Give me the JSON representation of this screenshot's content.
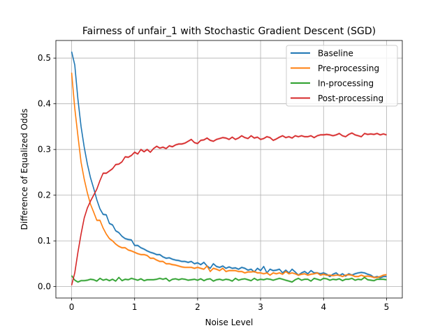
{
  "chart_data": {
    "type": "line",
    "title": "Fairness of unfair_1 with Stochastic Gradient Descent (SGD)",
    "xlabel": "Noise Level",
    "ylabel": "Difference of Equalized Odds",
    "xlim": [
      -0.25,
      5.25
    ],
    "ylim": [
      -0.025,
      0.5385
    ],
    "xticks": [
      0,
      1,
      2,
      3,
      4,
      5
    ],
    "xtick_labels": [
      "0",
      "1",
      "2",
      "3",
      "4",
      "5"
    ],
    "yticks": [
      0.0,
      0.1,
      0.2,
      0.3,
      0.4,
      0.5
    ],
    "ytick_labels": [
      "0.0",
      "0.1",
      "0.2",
      "0.3",
      "0.4",
      "0.5"
    ],
    "grid": true,
    "legend_position": "top-right",
    "x": [
      0,
      0.05,
      0.1,
      0.15,
      0.2,
      0.25,
      0.3,
      0.35,
      0.4,
      0.45,
      0.5,
      0.55,
      0.6,
      0.65,
      0.7,
      0.75,
      0.8,
      0.85,
      0.9,
      0.95,
      1.0,
      1.05,
      1.1,
      1.15,
      1.2,
      1.25,
      1.3,
      1.35,
      1.4,
      1.45,
      1.5,
      1.55,
      1.6,
      1.65,
      1.7,
      1.75,
      1.8,
      1.85,
      1.9,
      1.95,
      2.0,
      2.05,
      2.1,
      2.15,
      2.2,
      2.25,
      2.3,
      2.35,
      2.4,
      2.45,
      2.5,
      2.55,
      2.6,
      2.65,
      2.7,
      2.75,
      2.8,
      2.85,
      2.9,
      2.95,
      3.0,
      3.05,
      3.1,
      3.15,
      3.2,
      3.25,
      3.3,
      3.35,
      3.4,
      3.45,
      3.5,
      3.55,
      3.6,
      3.65,
      3.7,
      3.75,
      3.8,
      3.85,
      3.9,
      3.95,
      4.0,
      4.05,
      4.1,
      4.15,
      4.2,
      4.25,
      4.3,
      4.35,
      4.4,
      4.45,
      4.5,
      4.55,
      4.6,
      4.65,
      4.7,
      4.75,
      4.8,
      4.85,
      4.9,
      4.95,
      5.0
    ],
    "series": [
      {
        "name": "Baseline",
        "color": "#1f77b4",
        "values": [
          0.514,
          0.485,
          0.41,
          0.35,
          0.305,
          0.268,
          0.238,
          0.215,
          0.19,
          0.17,
          0.158,
          0.157,
          0.138,
          0.135,
          0.122,
          0.118,
          0.11,
          0.105,
          0.103,
          0.102,
          0.09,
          0.09,
          0.085,
          0.082,
          0.078,
          0.075,
          0.073,
          0.07,
          0.07,
          0.065,
          0.062,
          0.063,
          0.06,
          0.058,
          0.057,
          0.055,
          0.055,
          0.053,
          0.055,
          0.05,
          0.052,
          0.048,
          0.053,
          0.045,
          0.04,
          0.05,
          0.044,
          0.042,
          0.045,
          0.04,
          0.043,
          0.04,
          0.041,
          0.038,
          0.042,
          0.04,
          0.036,
          0.038,
          0.032,
          0.04,
          0.035,
          0.044,
          0.03,
          0.038,
          0.035,
          0.036,
          0.038,
          0.03,
          0.036,
          0.03,
          0.038,
          0.032,
          0.025,
          0.03,
          0.033,
          0.028,
          0.035,
          0.03,
          0.03,
          0.028,
          0.03,
          0.027,
          0.022,
          0.027,
          0.03,
          0.024,
          0.028,
          0.023,
          0.028,
          0.025,
          0.028,
          0.03,
          0.031,
          0.03,
          0.027,
          0.025,
          0.02,
          0.022,
          0.019,
          0.022,
          0.022
        ]
      },
      {
        "name": "Pre-processing",
        "color": "#ff7f0e",
        "values": [
          0.468,
          0.39,
          0.33,
          0.272,
          0.235,
          0.205,
          0.18,
          0.163,
          0.145,
          0.145,
          0.128,
          0.115,
          0.105,
          0.1,
          0.093,
          0.088,
          0.085,
          0.085,
          0.08,
          0.078,
          0.075,
          0.072,
          0.07,
          0.07,
          0.068,
          0.062,
          0.062,
          0.058,
          0.055,
          0.055,
          0.05,
          0.05,
          0.048,
          0.047,
          0.045,
          0.043,
          0.042,
          0.042,
          0.042,
          0.04,
          0.042,
          0.04,
          0.038,
          0.045,
          0.033,
          0.04,
          0.038,
          0.035,
          0.04,
          0.033,
          0.035,
          0.035,
          0.035,
          0.033,
          0.033,
          0.03,
          0.032,
          0.032,
          0.033,
          0.03,
          0.03,
          0.028,
          0.03,
          0.025,
          0.03,
          0.028,
          0.03,
          0.027,
          0.033,
          0.028,
          0.03,
          0.028,
          0.025,
          0.027,
          0.028,
          0.025,
          0.027,
          0.028,
          0.03,
          0.025,
          0.027,
          0.025,
          0.025,
          0.024,
          0.025,
          0.025,
          0.022,
          0.025,
          0.026,
          0.025,
          0.022,
          0.022,
          0.025,
          0.022,
          0.023,
          0.022,
          0.02,
          0.02,
          0.022,
          0.025,
          0.026
        ]
      },
      {
        "name": "In-processing",
        "color": "#2ca02c",
        "values": [
          0.024,
          0.014,
          0.01,
          0.013,
          0.013,
          0.014,
          0.016,
          0.015,
          0.012,
          0.018,
          0.014,
          0.016,
          0.013,
          0.016,
          0.012,
          0.02,
          0.013,
          0.016,
          0.015,
          0.018,
          0.016,
          0.014,
          0.017,
          0.013,
          0.015,
          0.015,
          0.015,
          0.016,
          0.018,
          0.016,
          0.018,
          0.012,
          0.016,
          0.017,
          0.015,
          0.017,
          0.016,
          0.014,
          0.015,
          0.016,
          0.014,
          0.017,
          0.013,
          0.016,
          0.017,
          0.012,
          0.015,
          0.016,
          0.014,
          0.016,
          0.015,
          0.012,
          0.018,
          0.014,
          0.016,
          0.017,
          0.015,
          0.013,
          0.018,
          0.014,
          0.016,
          0.015,
          0.017,
          0.016,
          0.014,
          0.016,
          0.018,
          0.016,
          0.014,
          0.012,
          0.01,
          0.015,
          0.018,
          0.014,
          0.016,
          0.016,
          0.012,
          0.018,
          0.016,
          0.014,
          0.018,
          0.017,
          0.014,
          0.016,
          0.015,
          0.017,
          0.013,
          0.016,
          0.016,
          0.018,
          0.014,
          0.016,
          0.015,
          0.02,
          0.015,
          0.014,
          0.013,
          0.016,
          0.016,
          0.016,
          0.015
        ]
      },
      {
        "name": "Post-processing",
        "color": "#d62728",
        "values": [
          0.003,
          0.03,
          0.075,
          0.115,
          0.15,
          0.172,
          0.187,
          0.2,
          0.213,
          0.232,
          0.248,
          0.248,
          0.253,
          0.258,
          0.267,
          0.268,
          0.273,
          0.284,
          0.283,
          0.287,
          0.294,
          0.29,
          0.3,
          0.295,
          0.3,
          0.294,
          0.302,
          0.307,
          0.303,
          0.305,
          0.302,
          0.308,
          0.306,
          0.31,
          0.312,
          0.312,
          0.314,
          0.318,
          0.322,
          0.315,
          0.313,
          0.32,
          0.321,
          0.325,
          0.32,
          0.318,
          0.322,
          0.324,
          0.326,
          0.325,
          0.322,
          0.327,
          0.322,
          0.325,
          0.33,
          0.326,
          0.324,
          0.33,
          0.325,
          0.327,
          0.322,
          0.324,
          0.328,
          0.326,
          0.32,
          0.323,
          0.327,
          0.33,
          0.326,
          0.328,
          0.325,
          0.33,
          0.328,
          0.33,
          0.328,
          0.328,
          0.33,
          0.326,
          0.33,
          0.332,
          0.332,
          0.333,
          0.332,
          0.33,
          0.332,
          0.335,
          0.33,
          0.328,
          0.333,
          0.336,
          0.332,
          0.33,
          0.328,
          0.335,
          0.333,
          0.334,
          0.333,
          0.335,
          0.332,
          0.334,
          0.332
        ]
      }
    ]
  }
}
